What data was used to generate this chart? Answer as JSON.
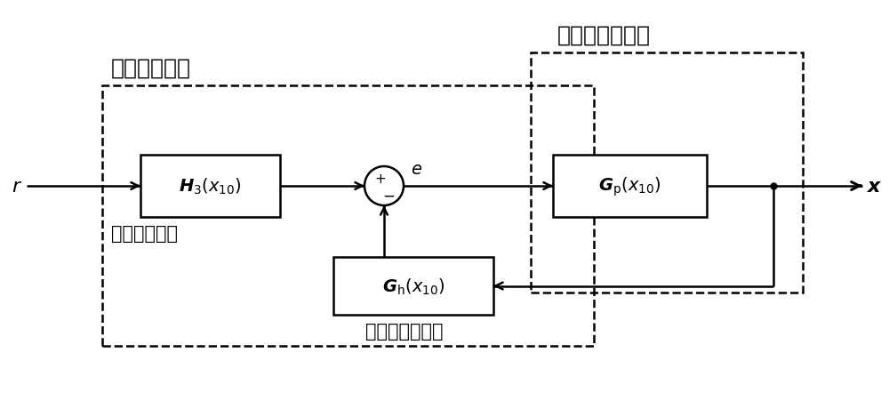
{
  "bg_color": "#ffffff",
  "fig_width": 10.0,
  "fig_height": 4.52,
  "title_adaptive": "自适应控制器",
  "title_magnetic": "磁悬浮轴承系统",
  "label_r": "r",
  "label_x": "x",
  "label_e": "e",
  "label_steady": "稳态误差系数",
  "label_feedback": "状态反馈控制器",
  "lw": 1.8,
  "lw_thick": 2.2
}
